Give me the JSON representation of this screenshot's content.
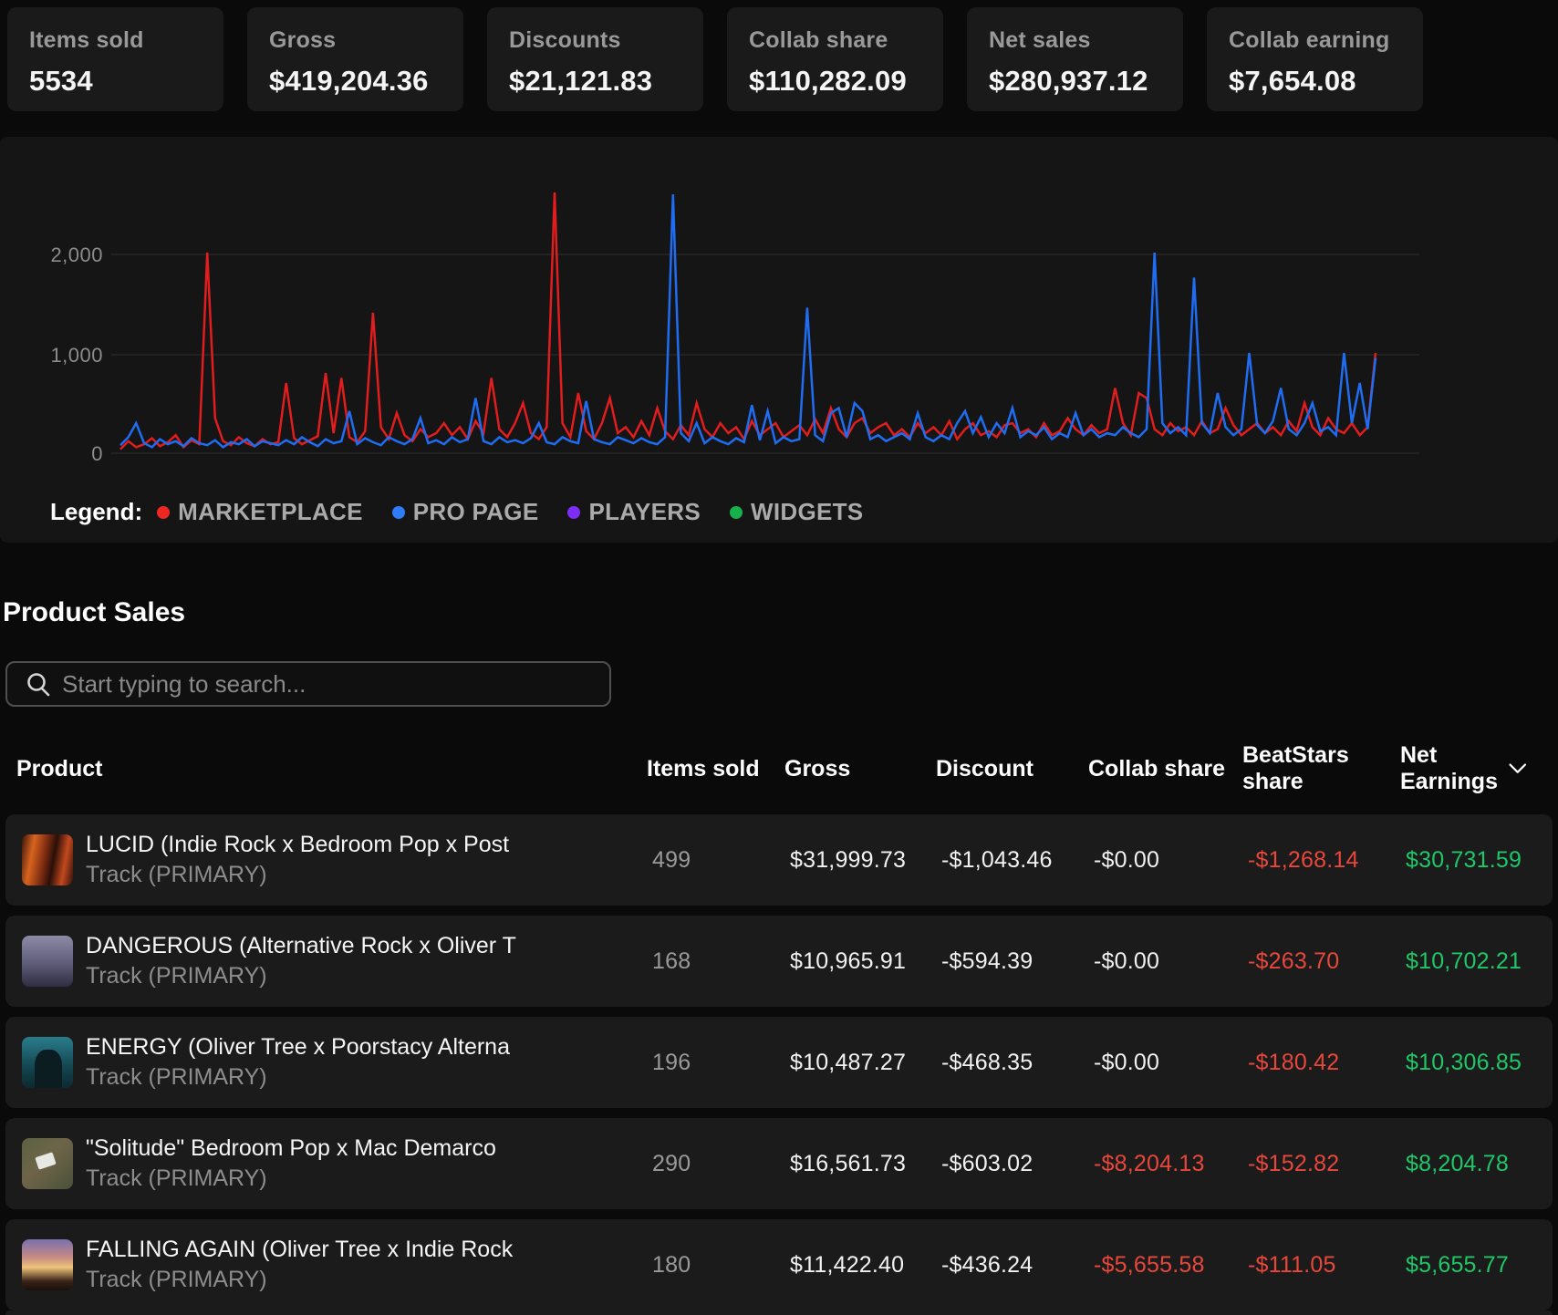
{
  "stats": [
    {
      "label": "Items sold",
      "value": "5534"
    },
    {
      "label": "Gross",
      "value": "$419,204.36"
    },
    {
      "label": "Discounts",
      "value": "$21,121.83"
    },
    {
      "label": "Collab share",
      "value": "$110,282.09"
    },
    {
      "label": "Net sales",
      "value": "$280,937.12"
    },
    {
      "label": "Collab earning",
      "value": "$7,654.08"
    }
  ],
  "chart": {
    "y_ticks": [
      "2,000",
      "1,000",
      "0"
    ],
    "legend_title": "Legend:",
    "legend": [
      {
        "label": "MARKETPLACE",
        "color": "#ee2723"
      },
      {
        "label": "PRO PAGE",
        "color": "#2e7cf6"
      },
      {
        "label": "PLAYERS",
        "color": "#7d2ef5"
      },
      {
        "label": "WIDGETS",
        "color": "#17b14b"
      }
    ]
  },
  "chart_data": {
    "type": "line",
    "title": "",
    "xlabel": "",
    "ylabel": "",
    "x_tick_labels": [],
    "ylim": [
      0,
      2700
    ],
    "y_gridlines": [
      0,
      1000,
      2000
    ],
    "grid": true,
    "legend_position": "bottom",
    "series": [
      {
        "name": "MARKETPLACE",
        "color": "#e11d1d",
        "values": [
          40,
          120,
          60,
          90,
          150,
          70,
          110,
          180,
          60,
          130,
          90,
          2000,
          350,
          120,
          80,
          160,
          100,
          70,
          140,
          90,
          110,
          700,
          150,
          90,
          130,
          170,
          800,
          200,
          750,
          160,
          110,
          220,
          1400,
          260,
          140,
          400,
          180,
          120,
          240,
          160,
          200,
          300,
          180,
          260,
          140,
          320,
          200,
          750,
          240,
          160,
          300,
          500,
          200,
          140,
          260,
          2600,
          300,
          160,
          600,
          220,
          140,
          300,
          550,
          200,
          260,
          160,
          320,
          180,
          450,
          220,
          140,
          280,
          180,
          500,
          240,
          160,
          300,
          200,
          260,
          140,
          320,
          180,
          240,
          300,
          160,
          220,
          280,
          180,
          340,
          200,
          450,
          240,
          160,
          300,
          350,
          200,
          260,
          300,
          180,
          240,
          160,
          300,
          200,
          260,
          180,
          320,
          140,
          240,
          300,
          180,
          220,
          160,
          280,
          300,
          200,
          240,
          160,
          300,
          180,
          220,
          350,
          240,
          180,
          280,
          200,
          240,
          650,
          300,
          180,
          600,
          550,
          240,
          180,
          300,
          220,
          260,
          180,
          320,
          200,
          240,
          450,
          280,
          180,
          240,
          300,
          200,
          260,
          180,
          320,
          220,
          500,
          260,
          180,
          350,
          240,
          200,
          300,
          180,
          260,
          1000
        ]
      },
      {
        "name": "PRO PAGE",
        "color": "#1f6df2",
        "values": [
          80,
          160,
          300,
          100,
          60,
          140,
          90,
          120,
          70,
          150,
          100,
          80,
          130,
          60,
          110,
          90,
          140,
          70,
          120,
          100,
          80,
          130,
          90,
          160,
          110,
          70,
          140,
          100,
          120,
          420,
          90,
          150,
          110,
          80,
          160,
          120,
          90,
          140,
          350,
          100,
          130,
          90,
          160,
          110,
          140,
          550,
          120,
          90,
          160,
          110,
          130,
          100,
          150,
          300,
          110,
          90,
          160,
          120,
          100,
          520,
          140,
          110,
          90,
          160,
          130,
          100,
          150,
          110,
          90,
          160,
          2580,
          200,
          120,
          300,
          100,
          160,
          120,
          90,
          150,
          110,
          480,
          130,
          420,
          100,
          160,
          120,
          140,
          1450,
          180,
          120,
          400,
          450,
          160,
          500,
          420,
          140,
          180,
          120,
          160,
          200,
          140,
          400,
          160,
          120,
          180,
          140,
          300,
          420,
          200,
          360,
          160,
          300,
          200,
          450,
          160,
          220,
          180,
          260,
          140,
          200,
          160,
          400,
          180,
          240,
          160,
          200,
          180,
          260,
          200,
          160,
          240,
          2000,
          300,
          200,
          260,
          180,
          1750,
          300,
          200,
          600,
          260,
          180,
          240,
          1000,
          280,
          200,
          320,
          650,
          240,
          180,
          300,
          500,
          220,
          260,
          180,
          1000,
          300,
          700,
          240,
          950
        ]
      },
      {
        "name": "PLAYERS",
        "color": "#7d2ef5",
        "values": []
      },
      {
        "name": "WIDGETS",
        "color": "#17b14b",
        "values": []
      }
    ]
  },
  "product_sales": {
    "title": "Product Sales",
    "search_placeholder": "Start typing to search...",
    "columns": [
      "Product",
      "Items sold",
      "Gross",
      "Discount",
      "Collab share",
      "BeatStars share",
      "Net Earnings"
    ],
    "rows": [
      {
        "title": "LUCID (Indie Rock x Bedroom Pop x Post",
        "subtitle": "Track (PRIMARY)",
        "items_sold": "499",
        "gross": "$31,999.73",
        "discount": "-$1,043.46",
        "collab_share": "-$0.00",
        "beatstars_share": "-$1,268.14",
        "net_earnings": "$30,731.59"
      },
      {
        "title": "DANGEROUS (Alternative Rock x Oliver T",
        "subtitle": "Track (PRIMARY)",
        "items_sold": "168",
        "gross": "$10,965.91",
        "discount": "-$594.39",
        "collab_share": "-$0.00",
        "beatstars_share": "-$263.70",
        "net_earnings": "$10,702.21"
      },
      {
        "title": "ENERGY (Oliver Tree x Poorstacy Alterna",
        "subtitle": "Track (PRIMARY)",
        "items_sold": "196",
        "gross": "$10,487.27",
        "discount": "-$468.35",
        "collab_share": "-$0.00",
        "beatstars_share": "-$180.42",
        "net_earnings": "$10,306.85"
      },
      {
        "title": "\"Solitude\" Bedroom Pop x Mac Demarco",
        "subtitle": "Track (PRIMARY)",
        "items_sold": "290",
        "gross": "$16,561.73",
        "discount": "-$603.02",
        "collab_share": "-$8,204.13",
        "beatstars_share": "-$152.82",
        "net_earnings": "$8,204.78"
      },
      {
        "title": "FALLING AGAIN (Oliver Tree x Indie Rock",
        "subtitle": "Track (PRIMARY)",
        "items_sold": "180",
        "gross": "$11,422.40",
        "discount": "-$436.24",
        "collab_share": "-$5,655.58",
        "beatstars_share": "-$111.05",
        "net_earnings": "$5,655.77"
      }
    ]
  }
}
